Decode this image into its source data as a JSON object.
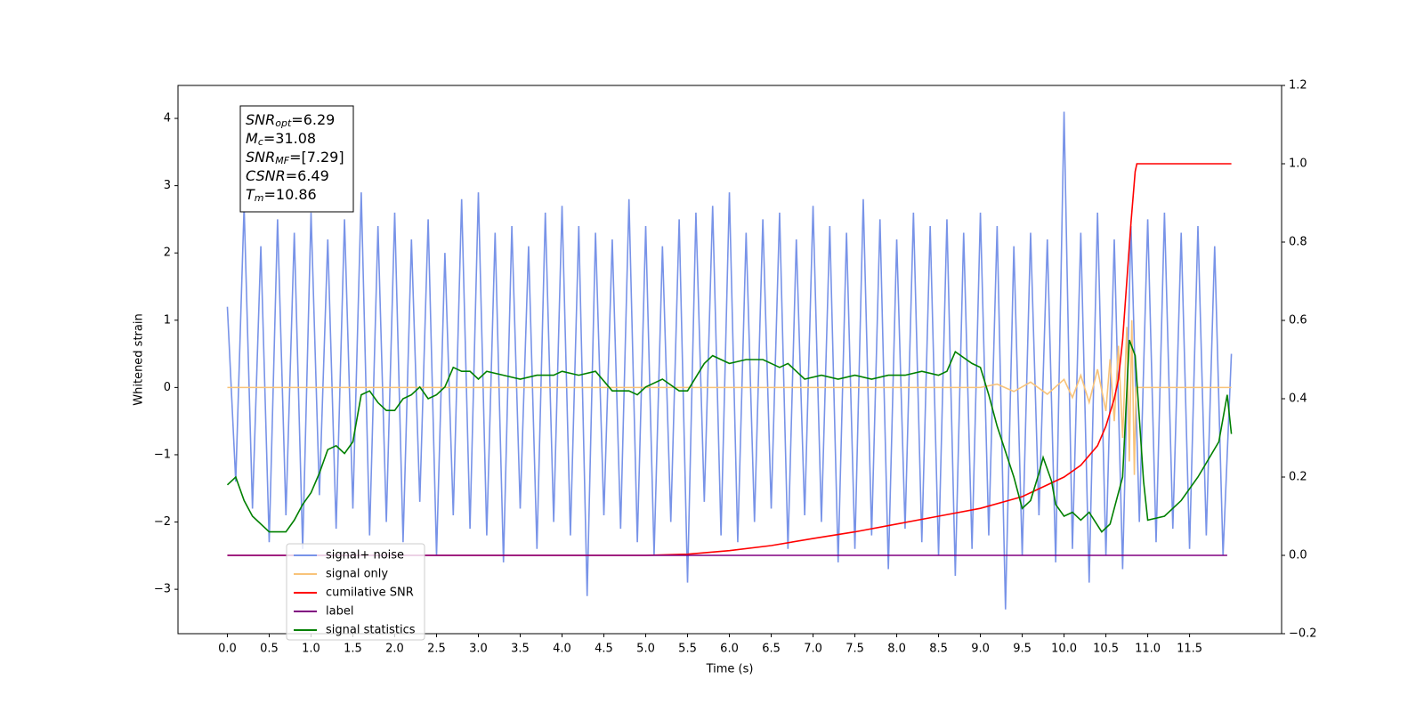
{
  "chart_data": {
    "type": "line",
    "xlabel": "Time (s)",
    "ylabel": "Whitened strain",
    "xlim": [
      -0.59,
      12.6
    ],
    "ylim": [
      -3.66,
      4.49
    ],
    "y2lim": [
      -0.2,
      1.2
    ],
    "xticks": [
      {
        "value": 0,
        "label": "0.0"
      },
      {
        "value": 0.5,
        "label": "0.5"
      },
      {
        "value": 1,
        "label": "1.0"
      },
      {
        "value": 1.5,
        "label": "1.5"
      },
      {
        "value": 2,
        "label": "2.0"
      },
      {
        "value": 2.5,
        "label": "2.5"
      },
      {
        "value": 3,
        "label": "3.0"
      },
      {
        "value": 3.5,
        "label": "3.5"
      },
      {
        "value": 4,
        "label": "4.0"
      },
      {
        "value": 4.5,
        "label": "4.5"
      },
      {
        "value": 5,
        "label": "5.0"
      },
      {
        "value": 5.5,
        "label": "5.5"
      },
      {
        "value": 6,
        "label": "6.0"
      },
      {
        "value": 6.5,
        "label": "6.5"
      },
      {
        "value": 7,
        "label": "7.0"
      },
      {
        "value": 7.5,
        "label": "7.5"
      },
      {
        "value": 8,
        "label": "8.0"
      },
      {
        "value": 8.5,
        "label": "8.5"
      },
      {
        "value": 9,
        "label": "9.0"
      },
      {
        "value": 9.5,
        "label": "9.5"
      },
      {
        "value": 10,
        "label": "10.0"
      },
      {
        "value": 10.5,
        "label": "10.5"
      },
      {
        "value": 11,
        "label": "11.0"
      },
      {
        "value": 11.5,
        "label": "11.5"
      }
    ],
    "yticks": [
      {
        "value": -3,
        "label": "−3"
      },
      {
        "value": -2,
        "label": "−2"
      },
      {
        "value": -1,
        "label": "−1"
      },
      0,
      1,
      2,
      3,
      4
    ],
    "y2ticks": [
      {
        "value": -0.2,
        "label": "−0.2"
      },
      {
        "value": 0,
        "label": "0.0"
      },
      0.2,
      0.4,
      0.6,
      0.8,
      {
        "value": 1,
        "label": "1.0"
      },
      1.2
    ],
    "legend": "lower left",
    "annotations": [
      {
        "name": "SNR",
        "sub": "opt",
        "value": "=6.29"
      },
      {
        "name": "M",
        "sub": "c",
        "value": "=31.08"
      },
      {
        "name": "SNR",
        "sub": "MF",
        "value": "=[7.29]"
      },
      {
        "name": "CSNR",
        "value": "=6.49"
      },
      {
        "name": "T",
        "sub": "m",
        "value": "=10.86"
      }
    ],
    "series": [
      {
        "name": "signal+ noise",
        "color": "#7893e8",
        "x": [
          0,
          0.1,
          0.2,
          0.3,
          0.4,
          0.5,
          0.6,
          0.7,
          0.8,
          0.9,
          1,
          1.1,
          1.2,
          1.3,
          1.4,
          1.5,
          1.6,
          1.7,
          1.8,
          1.9,
          2,
          2.1,
          2.2,
          2.3,
          2.4,
          2.5,
          2.6,
          2.7,
          2.8,
          2.9,
          3,
          3.1,
          3.2,
          3.3,
          3.4,
          3.5,
          3.6,
          3.7,
          3.8,
          3.9,
          4,
          4.1,
          4.2,
          4.3,
          4.4,
          4.5,
          4.6,
          4.7,
          4.8,
          4.9,
          5,
          5.1,
          5.2,
          5.3,
          5.4,
          5.5,
          5.6,
          5.7,
          5.8,
          5.9,
          6,
          6.1,
          6.2,
          6.3,
          6.4,
          6.5,
          6.6,
          6.7,
          6.8,
          6.9,
          7,
          7.1,
          7.2,
          7.3,
          7.4,
          7.5,
          7.6,
          7.7,
          7.8,
          7.9,
          8,
          8.1,
          8.2,
          8.3,
          8.4,
          8.5,
          8.6,
          8.7,
          8.8,
          8.9,
          9,
          9.1,
          9.2,
          9.3,
          9.4,
          9.5,
          9.6,
          9.7,
          9.8,
          9.9,
          10,
          10.1,
          10.2,
          10.3,
          10.4,
          10.5,
          10.6,
          10.7,
          10.8,
          10.9,
          11,
          11.1,
          11.2,
          11.3,
          11.4,
          11.5,
          11.6,
          11.7,
          11.8,
          11.9,
          12
        ],
        "values": [
          1.2,
          -1.4,
          2.7,
          -1.8,
          2.1,
          -2.3,
          2.5,
          -1.9,
          2.3,
          -2.4,
          2.6,
          -1.6,
          2.2,
          -2.1,
          2.5,
          -1.8,
          2.9,
          -2.2,
          2.4,
          -2.0,
          2.6,
          -2.3,
          2.2,
          -1.7,
          2.5,
          -2.5,
          2.0,
          -1.9,
          2.8,
          -2.1,
          2.9,
          -2.2,
          2.3,
          -2.6,
          2.4,
          -1.8,
          2.1,
          -2.4,
          2.6,
          -2.0,
          2.7,
          -2.2,
          2.4,
          -3.1,
          2.3,
          -1.9,
          2.2,
          -2.1,
          2.8,
          -2.3,
          2.4,
          -2.5,
          2.1,
          -2.0,
          2.5,
          -2.9,
          2.6,
          -1.7,
          2.7,
          -2.2,
          2.9,
          -2.3,
          2.3,
          -2.0,
          2.5,
          -1.8,
          2.6,
          -2.4,
          2.2,
          -1.9,
          2.7,
          -2.0,
          2.4,
          -2.6,
          2.3,
          -2.4,
          2.8,
          -2.2,
          2.5,
          -2.7,
          2.2,
          -2.1,
          2.6,
          -2.3,
          2.4,
          -2.5,
          2.5,
          -2.8,
          2.3,
          -2.4,
          2.6,
          -2.2,
          2.4,
          -3.3,
          2.1,
          -2.5,
          2.3,
          -1.9,
          2.2,
          -2.6,
          4.1,
          -2.4,
          2.3,
          -2.9,
          2.6,
          -2.5,
          2.2,
          -2.7,
          2.4,
          -2.0,
          2.5,
          -2.3,
          2.6,
          -2.1,
          2.3,
          -2.4,
          2.4,
          -2.2,
          2.1,
          -2.5,
          0.5
        ]
      },
      {
        "name": "signal only",
        "color": "#f8c37a",
        "x": [
          0,
          9,
          9.2,
          9.4,
          9.6,
          9.8,
          10,
          10.1,
          10.2,
          10.3,
          10.4,
          10.5,
          10.55,
          10.6,
          10.65,
          10.7,
          10.75,
          10.78,
          10.81,
          10.84,
          10.86,
          10.9,
          12
        ],
        "values": [
          0,
          0,
          0.05,
          -0.06,
          0.08,
          -0.1,
          0.12,
          -0.15,
          0.18,
          -0.22,
          0.27,
          -0.35,
          0.42,
          -0.5,
          0.62,
          -0.75,
          0.9,
          -1.1,
          1.0,
          -1.3,
          0,
          0,
          0
        ]
      },
      {
        "name": "cumilative SNR",
        "color": "#ff0000",
        "axis": "y2",
        "x": [
          0,
          5,
          5.5,
          6,
          6.5,
          7,
          7.5,
          8,
          8.5,
          9,
          9.5,
          10,
          10.2,
          10.4,
          10.5,
          10.6,
          10.65,
          10.7,
          10.75,
          10.8,
          10.85,
          10.87,
          12
        ],
        "values": [
          0,
          0,
          0.003,
          0.012,
          0.025,
          0.043,
          0.06,
          0.08,
          0.1,
          0.12,
          0.15,
          0.2,
          0.23,
          0.28,
          0.33,
          0.4,
          0.45,
          0.55,
          0.7,
          0.85,
          0.98,
          1,
          1
        ]
      },
      {
        "name": "label",
        "color": "#800080",
        "axis": "y2",
        "x": [
          0,
          11.95
        ],
        "values": [
          0,
          0
        ]
      },
      {
        "name": "signal statistics",
        "color": "#008000",
        "axis": "y2",
        "x": [
          0,
          0.1,
          0.2,
          0.3,
          0.5,
          0.7,
          0.8,
          0.9,
          1,
          1.1,
          1.2,
          1.3,
          1.4,
          1.5,
          1.6,
          1.7,
          1.8,
          1.9,
          2,
          2.1,
          2.2,
          2.3,
          2.4,
          2.5,
          2.6,
          2.7,
          2.8,
          2.9,
          3,
          3.1,
          3.3,
          3.5,
          3.7,
          3.9,
          4,
          4.2,
          4.4,
          4.6,
          4.8,
          4.9,
          5,
          5.2,
          5.4,
          5.5,
          5.7,
          5.8,
          6,
          6.2,
          6.4,
          6.6,
          6.7,
          6.9,
          7.1,
          7.3,
          7.5,
          7.7,
          7.9,
          8.1,
          8.3,
          8.5,
          8.6,
          8.7,
          8.9,
          9,
          9.1,
          9.2,
          9.4,
          9.5,
          9.6,
          9.7,
          9.75,
          9.85,
          9.9,
          10,
          10.1,
          10.2,
          10.3,
          10.45,
          10.55,
          10.7,
          10.78,
          10.85,
          10.95,
          11,
          11.2,
          11.4,
          11.6,
          11.85,
          11.95,
          12
        ],
        "values": [
          0.18,
          0.2,
          0.14,
          0.1,
          0.06,
          0.06,
          0.09,
          0.13,
          0.16,
          0.21,
          0.27,
          0.28,
          0.26,
          0.29,
          0.41,
          0.42,
          0.39,
          0.37,
          0.37,
          0.4,
          0.41,
          0.43,
          0.4,
          0.41,
          0.43,
          0.48,
          0.47,
          0.47,
          0.45,
          0.47,
          0.46,
          0.45,
          0.46,
          0.46,
          0.47,
          0.46,
          0.47,
          0.42,
          0.42,
          0.41,
          0.43,
          0.45,
          0.42,
          0.42,
          0.49,
          0.51,
          0.49,
          0.5,
          0.5,
          0.48,
          0.49,
          0.45,
          0.46,
          0.45,
          0.46,
          0.45,
          0.46,
          0.46,
          0.47,
          0.46,
          0.47,
          0.52,
          0.49,
          0.48,
          0.41,
          0.33,
          0.2,
          0.12,
          0.14,
          0.21,
          0.25,
          0.19,
          0.13,
          0.1,
          0.11,
          0.09,
          0.11,
          0.06,
          0.08,
          0.2,
          0.55,
          0.51,
          0.19,
          0.09,
          0.1,
          0.14,
          0.2,
          0.29,
          0.41,
          0.31
        ]
      }
    ]
  }
}
